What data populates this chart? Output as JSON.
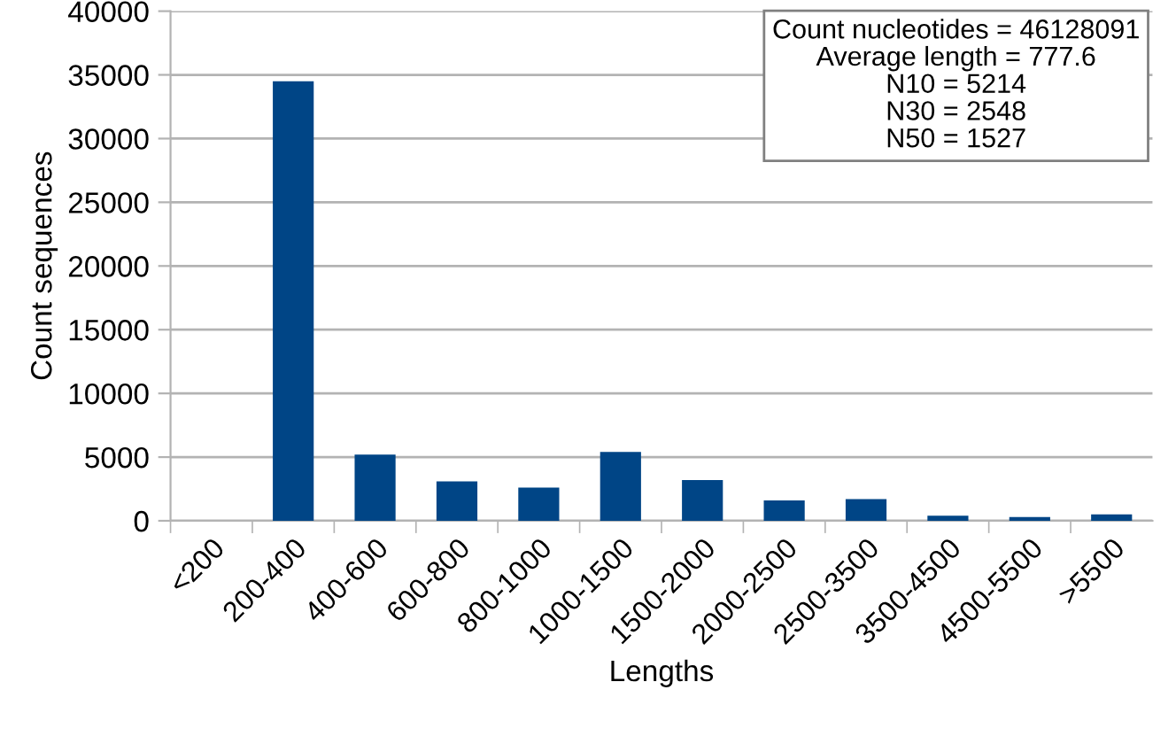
{
  "chart_data": {
    "type": "bar",
    "xlabel": "Lengths",
    "ylabel": "Count sequences",
    "categories": [
      "<200",
      "200-400",
      "400-600",
      "600-800",
      "800-1000",
      "1000-1500",
      "1500-2000",
      "2000-2500",
      "2500-3500",
      "3500-4500",
      "4500-5500",
      ">5500"
    ],
    "values": [
      0,
      34500,
      5200,
      3100,
      2600,
      5400,
      3200,
      1600,
      1700,
      400,
      300,
      500
    ],
    "color": "#004586",
    "ylim": [
      0,
      40000
    ],
    "yticks": [
      0,
      5000,
      10000,
      15000,
      20000,
      25000,
      30000,
      35000,
      40000
    ],
    "grid": "y",
    "annotations": [
      "Count nucleotides = 46128091\nAverage length = 777.6\nN10 = 5214\nN30 = 2548\nN50 = 1527"
    ]
  }
}
